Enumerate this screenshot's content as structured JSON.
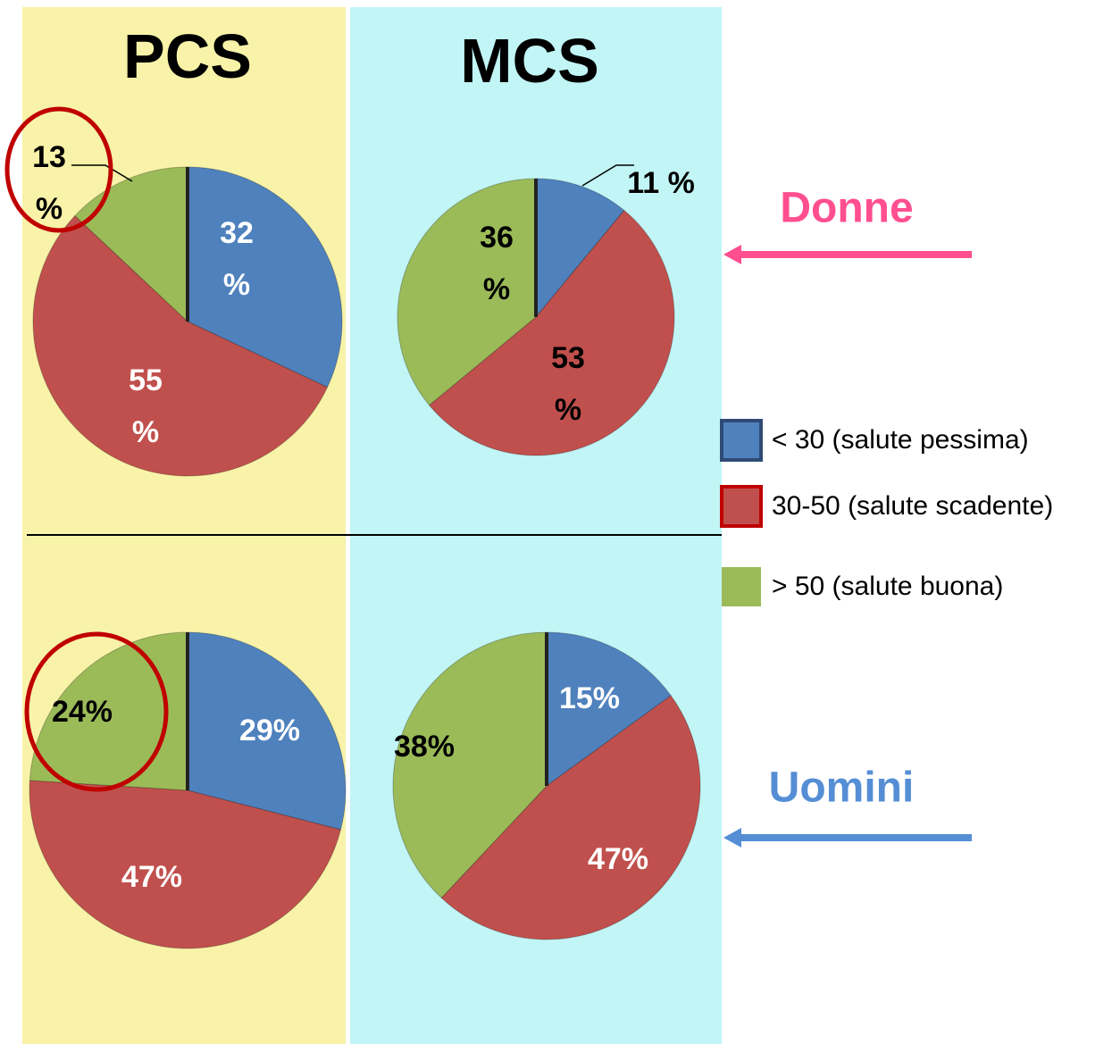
{
  "columns": [
    "PCS",
    "MCS"
  ],
  "rows": [
    "Donne",
    "Uomini"
  ],
  "chart_data": [
    {
      "type": "pie",
      "categories": [
        "< 30 (salute pessima)",
        "30-50 (salute scadente)",
        "> 50 (salute buona)"
      ],
      "colors": [
        "#4f81bd",
        "#c0504d",
        "#9bbb59"
      ],
      "values": [
        32,
        55,
        13
      ],
      "value_labels": [
        "32 %",
        "55 %",
        "13 %"
      ]
    },
    {
      "type": "pie",
      "categories": [
        "< 30 (salute pessima)",
        "30-50 (salute scadente)",
        "> 50 (salute buona)"
      ],
      "colors": [
        "#4f81bd",
        "#c0504d",
        "#9bbb59"
      ],
      "values": [
        11,
        53,
        36
      ],
      "value_labels": [
        "11 %",
        "53 %",
        "36 %"
      ]
    },
    {
      "type": "pie",
      "categories": [
        "< 30 (salute pessima)",
        "30-50 (salute scadente)",
        "> 50 (salute buona)"
      ],
      "colors": [
        "#4f81bd",
        "#c0504d",
        "#9bbb59"
      ],
      "values": [
        29,
        47,
        24
      ],
      "value_labels": [
        "29%",
        "47%",
        "24%"
      ]
    },
    {
      "type": "pie",
      "categories": [
        "< 30 (salute pessima)",
        "30-50 (salute scadente)",
        "> 50 (salute buona)"
      ],
      "colors": [
        "#4f81bd",
        "#c0504d",
        "#9bbb59"
      ],
      "values": [
        15,
        47,
        38
      ],
      "value_labels": [
        "15%",
        "47%",
        "38%"
      ]
    }
  ]
}
